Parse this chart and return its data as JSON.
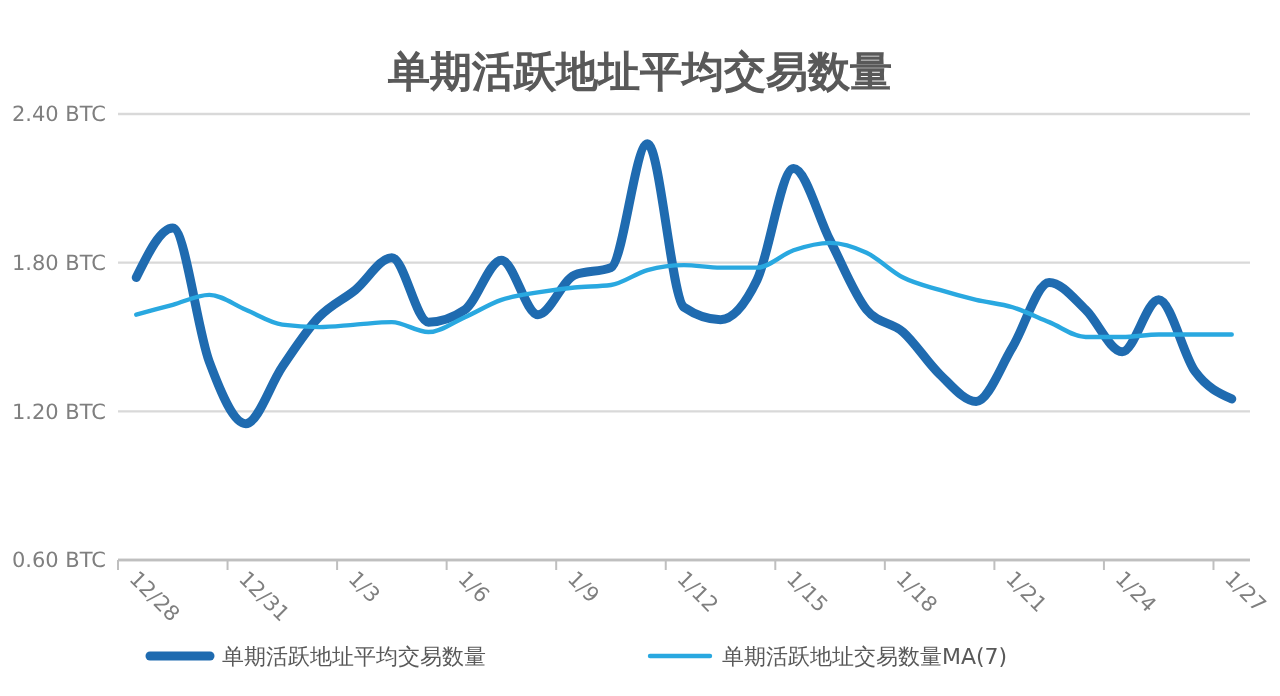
{
  "chart_data": {
    "type": "line",
    "title": "单期活跃地址平均交易数量",
    "categories": [
      "12/28",
      null,
      null,
      "12/31",
      null,
      null,
      "1/3",
      null,
      null,
      "1/6",
      null,
      null,
      "1/9",
      null,
      null,
      "1/12",
      null,
      null,
      "1/15",
      null,
      null,
      "1/18",
      null,
      null,
      "1/21",
      null,
      null,
      "1/24",
      null,
      null,
      "1/27"
    ],
    "series": [
      {
        "name": "单期活跃地址平均交易数量",
        "color": "#1f6bb0",
        "values": [
          1.74,
          1.94,
          1.4,
          1.15,
          1.38,
          1.58,
          1.69,
          1.82,
          1.56,
          1.61,
          1.81,
          1.59,
          1.75,
          1.78,
          2.28,
          1.62,
          1.57,
          1.73,
          2.18,
          1.89,
          1.61,
          1.52,
          1.35,
          1.24,
          1.46,
          1.72,
          1.61,
          1.44,
          1.65,
          1.36,
          1.25
        ]
      },
      {
        "name": "单期活跃地址交易数量MA(7)",
        "color": "#29a8e0",
        "values": [
          1.59,
          1.63,
          1.67,
          1.61,
          1.55,
          1.54,
          1.55,
          1.56,
          1.52,
          1.58,
          1.65,
          1.68,
          1.7,
          1.71,
          1.77,
          1.79,
          1.78,
          1.78,
          1.85,
          1.88,
          1.84,
          1.74,
          1.69,
          1.65,
          1.62,
          1.56,
          1.5,
          1.5,
          1.51,
          1.51,
          1.51
        ]
      }
    ],
    "ylim": [
      0.6,
      2.4
    ],
    "yticks": [
      {
        "value": 0.6,
        "label": "0.60 BTC"
      },
      {
        "value": 1.2,
        "label": "1.20 BTC"
      },
      {
        "value": 1.8,
        "label": "1.80 BTC"
      },
      {
        "value": 2.4,
        "label": "2.40 BTC"
      }
    ],
    "grid": "y",
    "legend": "bottom",
    "marker": "none",
    "line_style": "solid"
  }
}
